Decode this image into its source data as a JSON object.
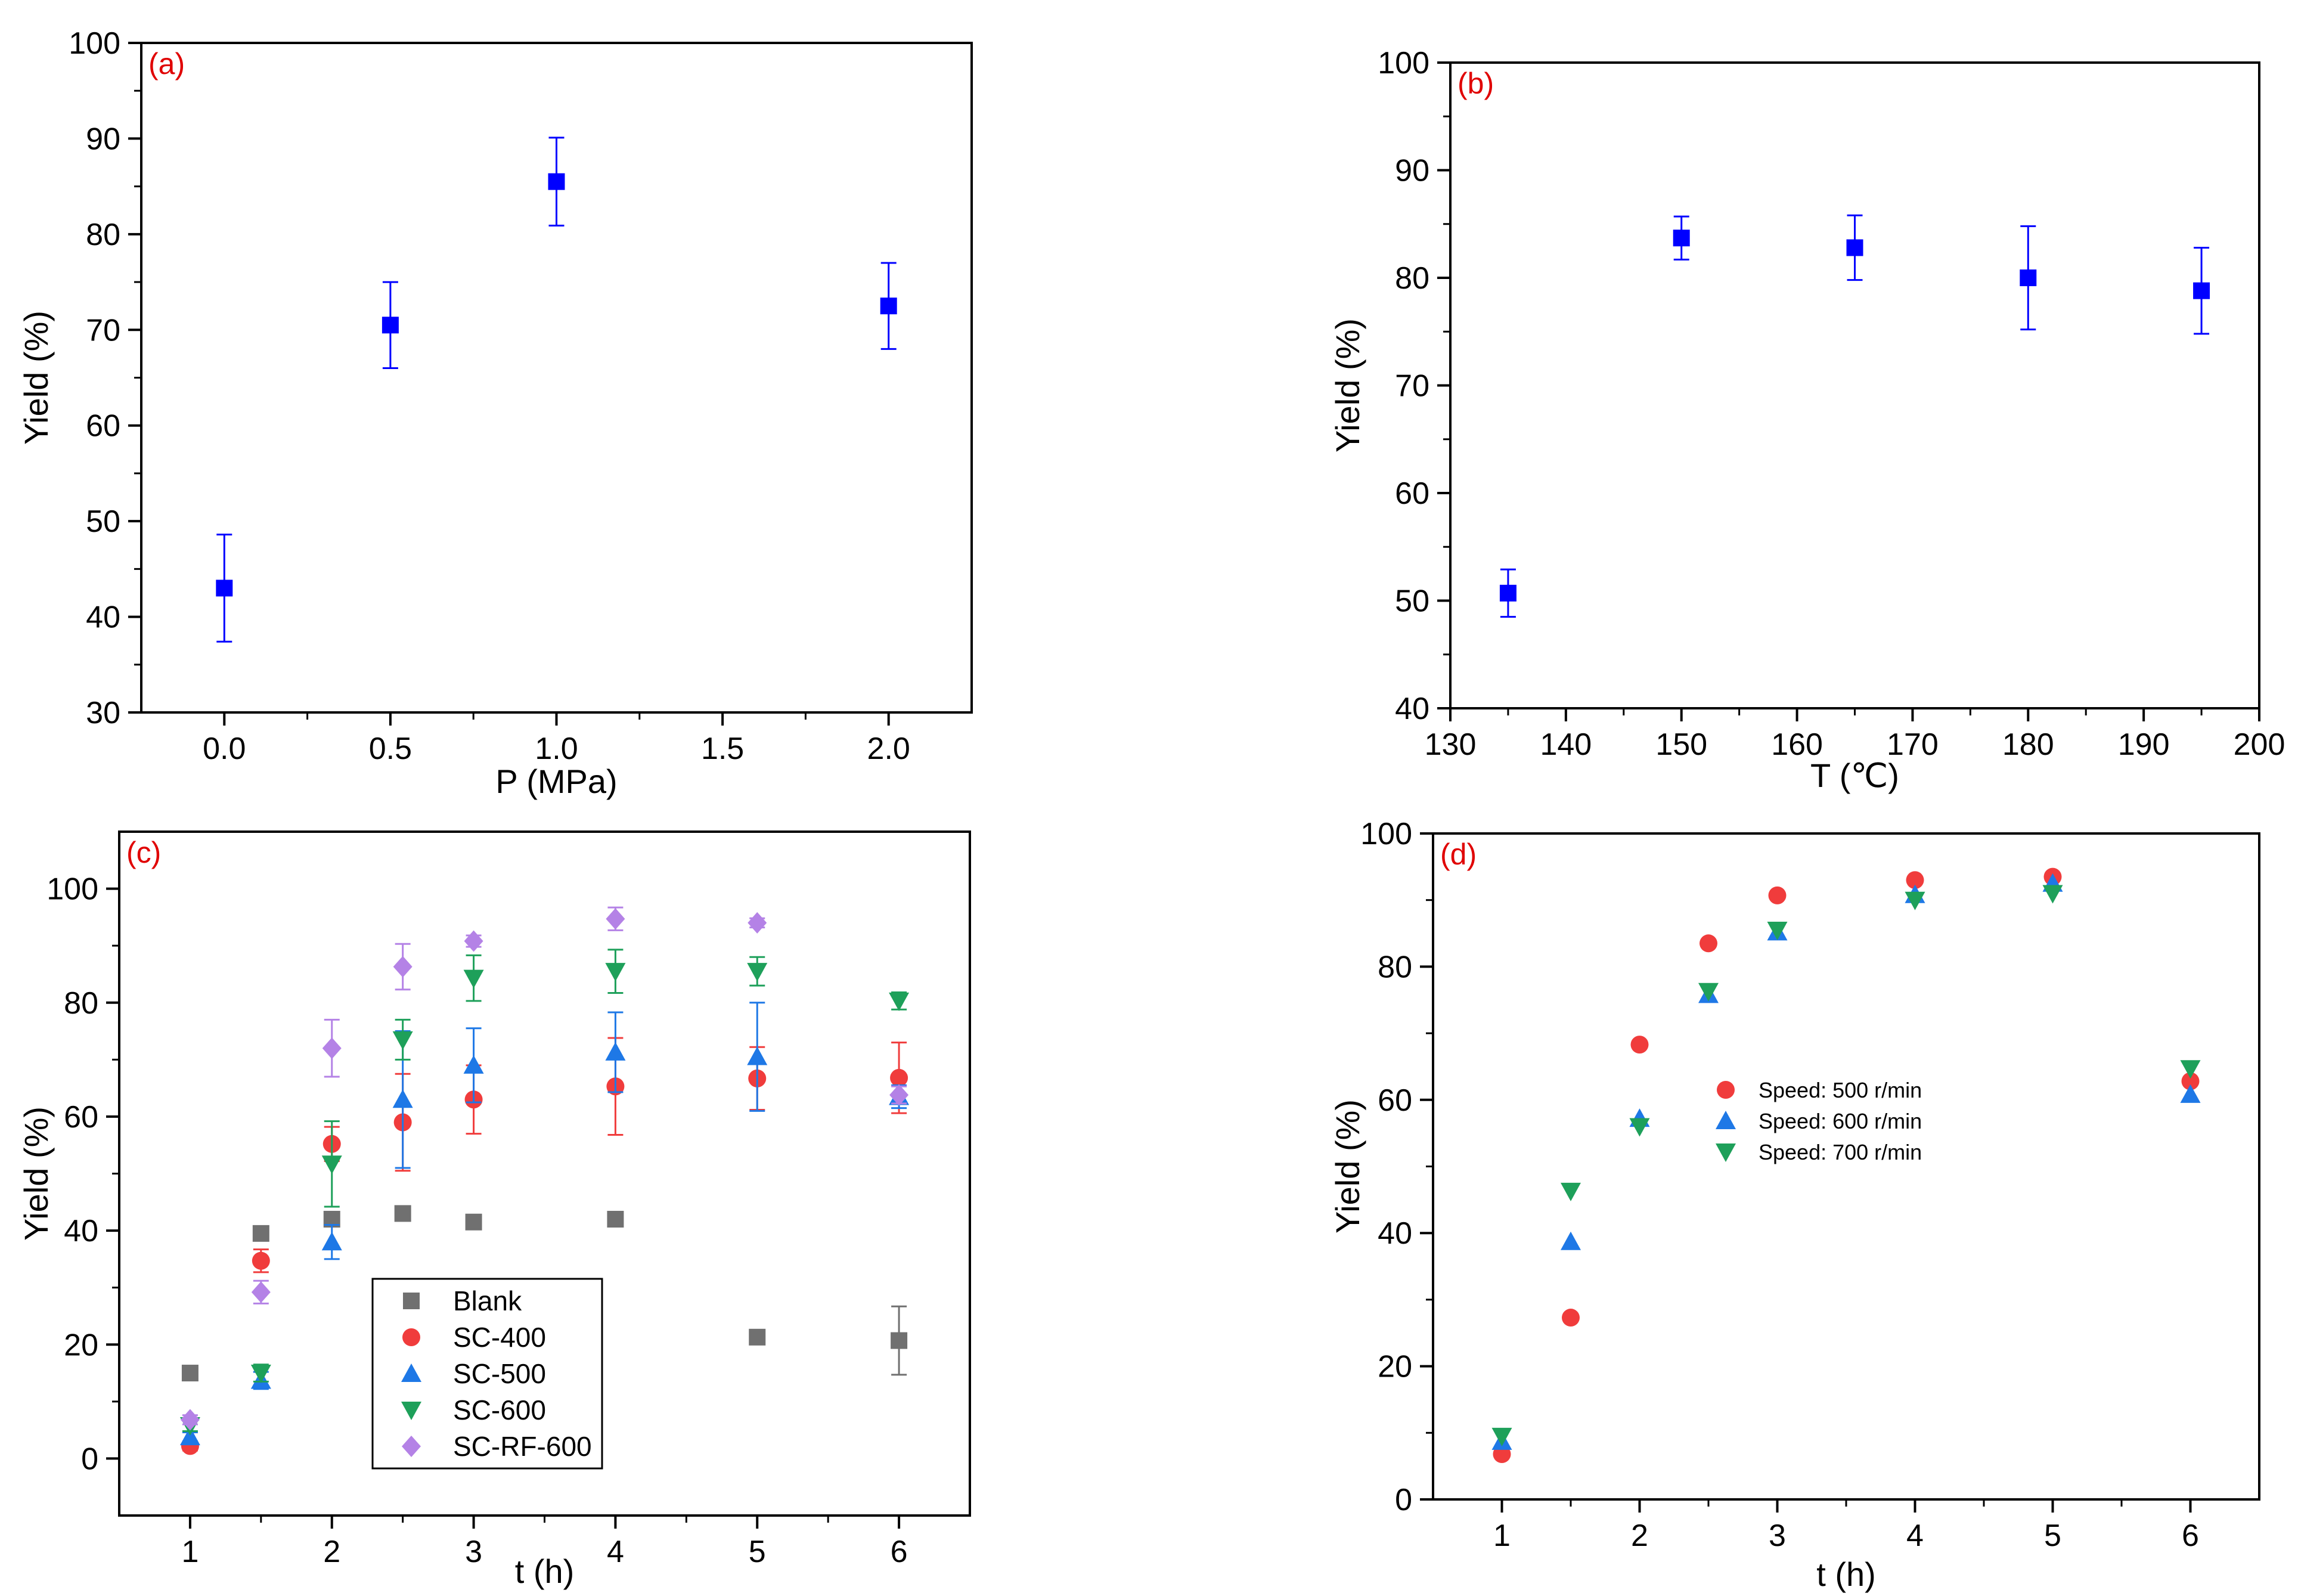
{
  "colors": {
    "axis": "#000000",
    "blue_series": "#0000ff",
    "panel_tag": "#e00000",
    "blank": "#707070",
    "sc400": "#f03c3c",
    "sc500": "#1e78e6",
    "sc600": "#1ea05a",
    "scrf600": "#b482e6"
  },
  "chart_data": [
    {
      "id": "a",
      "type": "scatter",
      "panel_label": "(a)",
      "xlabel": "P (MPa)",
      "ylabel": "Yield (%)",
      "xlim": [
        -0.25,
        2.25
      ],
      "ylim": [
        30,
        100
      ],
      "xticks": [
        0.0,
        0.5,
        1.0,
        1.5,
        2.0
      ],
      "xtick_labels": [
        "0.0",
        "0.5",
        "1.0",
        "1.5",
        "2.0"
      ],
      "yticks": [
        30,
        40,
        50,
        60,
        70,
        80,
        90,
        100
      ],
      "ytick_labels": [
        "30",
        "40",
        "50",
        "60",
        "70",
        "80",
        "90",
        "100"
      ],
      "series": [
        {
          "name": "Yield",
          "marker": "square",
          "color": "#0000ff",
          "x": [
            0.0,
            0.5,
            1.0,
            2.0
          ],
          "y": [
            43.0,
            70.5,
            85.5,
            72.5
          ],
          "err": [
            5.6,
            4.5,
            4.6,
            4.5
          ]
        }
      ]
    },
    {
      "id": "b",
      "type": "scatter",
      "panel_label": "(b)",
      "xlabel": "T (℃)",
      "ylabel": "Yield (%)",
      "xlim": [
        130,
        200
      ],
      "ylim": [
        40,
        100
      ],
      "xticks": [
        130,
        140,
        150,
        160,
        170,
        180,
        190,
        200
      ],
      "xtick_labels": [
        "130",
        "140",
        "150",
        "160",
        "170",
        "180",
        "190",
        "200"
      ],
      "yticks": [
        40,
        50,
        60,
        70,
        80,
        90,
        100
      ],
      "ytick_labels": [
        "40",
        "50",
        "60",
        "70",
        "80",
        "90",
        "100"
      ],
      "series": [
        {
          "name": "Yield",
          "marker": "square",
          "color": "#0000ff",
          "x": [
            135,
            150,
            165,
            180,
            195
          ],
          "y": [
            50.7,
            83.7,
            82.8,
            80.0,
            78.8
          ],
          "err": [
            2.2,
            2.0,
            3.0,
            4.8,
            4.0
          ]
        }
      ]
    },
    {
      "id": "c",
      "type": "scatter",
      "panel_label": "(c)",
      "xlabel": "t (h)",
      "ylabel": "Yield (%)",
      "xlim": [
        0.5,
        6.5
      ],
      "ylim": [
        -10,
        110
      ],
      "xticks": [
        1,
        2,
        3,
        4,
        5,
        6
      ],
      "xtick_labels": [
        "1",
        "2",
        "3",
        "4",
        "5",
        "6"
      ],
      "yticks": [
        0,
        20,
        40,
        60,
        80,
        100
      ],
      "ytick_labels": [
        "0",
        "20",
        "40",
        "60",
        "80",
        "100"
      ],
      "legend_position": "lower-center",
      "series": [
        {
          "name": "Blank",
          "marker": "square",
          "color": "#707070",
          "x": [
            1,
            1.5,
            2,
            2.5,
            3,
            4,
            5,
            6
          ],
          "y": [
            15.0,
            39.5,
            42.0,
            43.0,
            41.5,
            42.0,
            21.3,
            20.7
          ],
          "err": [
            0,
            0,
            0,
            0,
            0,
            0,
            0,
            6.0
          ]
        },
        {
          "name": "SC-400",
          "marker": "circle",
          "color": "#f03c3c",
          "x": [
            1,
            1.5,
            2,
            2.5,
            3,
            4,
            5,
            6
          ],
          "y": [
            2.2,
            34.7,
            55.2,
            59.0,
            63.0,
            65.3,
            66.7,
            66.8
          ],
          "err": [
            0.8,
            2.0,
            3.0,
            8.5,
            6.0,
            8.5,
            5.5,
            6.2
          ]
        },
        {
          "name": "SC-500",
          "marker": "triangle-up",
          "color": "#1e78e6",
          "x": [
            1,
            1.5,
            2,
            2.5,
            3,
            4,
            5,
            6
          ],
          "y": [
            3.8,
            13.7,
            38.0,
            63.0,
            69.0,
            71.3,
            70.5,
            63.5
          ],
          "err": [
            0.8,
            1.5,
            3.0,
            12.0,
            6.5,
            7.0,
            9.5,
            2.0
          ]
        },
        {
          "name": "SC-600",
          "marker": "triangle-down",
          "color": "#1ea05a",
          "x": [
            1,
            1.5,
            2,
            2.5,
            3,
            4,
            5,
            6
          ],
          "y": [
            5.8,
            15.0,
            51.7,
            73.5,
            84.3,
            85.5,
            85.5,
            80.3
          ],
          "err": [
            1.0,
            1.5,
            7.5,
            3.5,
            4.0,
            3.8,
            2.5,
            1.5
          ]
        },
        {
          "name": "SC-RF-600",
          "marker": "diamond",
          "color": "#b482e6",
          "x": [
            1,
            1.5,
            2,
            2.5,
            3,
            4,
            5,
            6
          ],
          "y": [
            6.8,
            29.2,
            72.0,
            86.3,
            90.8,
            94.7,
            94.0,
            63.8
          ],
          "err": [
            0.8,
            2.0,
            5.0,
            4.0,
            1.0,
            2.0,
            0.8,
            1.5
          ]
        }
      ]
    },
    {
      "id": "d",
      "type": "scatter",
      "panel_label": "(d)",
      "xlabel": "t (h)",
      "ylabel": "Yield (%)",
      "xlim": [
        0.5,
        6.5
      ],
      "ylim": [
        0,
        100
      ],
      "xticks": [
        1,
        2,
        3,
        4,
        5,
        6
      ],
      "xtick_labels": [
        "1",
        "2",
        "3",
        "4",
        "5",
        "6"
      ],
      "yticks": [
        0,
        20,
        40,
        60,
        80,
        100
      ],
      "ytick_labels": [
        "0",
        "20",
        "40",
        "60",
        "80",
        "100"
      ],
      "legend_position": "center",
      "series": [
        {
          "name": "Speed: 500 r/min",
          "marker": "circle",
          "color": "#f03c3c",
          "x": [
            1,
            1.5,
            2,
            2.5,
            3,
            4,
            5,
            6
          ],
          "y": [
            6.8,
            27.3,
            68.3,
            83.5,
            90.7,
            93.0,
            93.5,
            62.8
          ]
        },
        {
          "name": "Speed: 600 r/min",
          "marker": "triangle-up",
          "color": "#1e78e6",
          "x": [
            1,
            1.5,
            2,
            2.5,
            3,
            4,
            5,
            6
          ],
          "y": [
            8.7,
            38.7,
            57.2,
            75.8,
            85.2,
            90.8,
            92.5,
            60.8
          ]
        },
        {
          "name": "Speed: 700 r/min",
          "marker": "triangle-down",
          "color": "#1ea05a",
          "x": [
            1,
            1.5,
            2,
            2.5,
            3,
            4,
            5,
            6
          ],
          "y": [
            9.5,
            46.3,
            56.0,
            76.3,
            85.5,
            90.0,
            91.0,
            64.7
          ]
        }
      ]
    }
  ]
}
